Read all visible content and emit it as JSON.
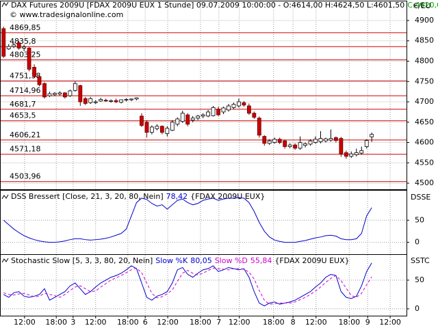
{
  "chart_data": [
    {
      "type": "candlestick",
      "title": "DAX Futures 2009U [FDAX 2009U EUX  1 Stunde] 09.07.2009 10:00:00 - O:4614,00 H:4624,50 L:4601,50",
      "close_label": "C:4620,00",
      "credit": "© www.tradesignalonline.com",
      "y_label": "€/EU",
      "up_color": "#ffffff",
      "down_color": "#cc0000",
      "level_color": "#cc0000",
      "ylim": [
        4485,
        4947
      ],
      "yticks": [
        4900,
        4850,
        4800,
        4750,
        4700,
        4650,
        4600,
        4550,
        4500
      ],
      "grid": true,
      "levels": [
        {
          "value": 4869.85,
          "label": "4869,85"
        },
        {
          "value": 4835.8,
          "label": "4835,8"
        },
        {
          "value": 4803.25,
          "label": "4803,25"
        },
        {
          "value": 4751.38,
          "label": "4751,38"
        },
        {
          "value": 4714.96,
          "label": "4714,96"
        },
        {
          "value": 4681.7,
          "label": "4681,7"
        },
        {
          "value": 4653.5,
          "label": "4653,5"
        },
        {
          "value": 4606.21,
          "label": "4606,21"
        },
        {
          "value": 4571.18,
          "label": "4571,18"
        },
        {
          "value": 4503.96,
          "label": "4503,96"
        }
      ],
      "open": [
        4880,
        4830,
        4836,
        4845,
        4832,
        4832,
        4785,
        4762,
        4745,
        4715,
        4718,
        4719,
        4722,
        4715,
        4728,
        4740,
        4708,
        4698,
        4698,
        4702,
        4704,
        4701,
        4703,
        4699,
        4704,
        4705,
        4707,
        4665,
        4650,
        4625,
        4634,
        4640,
        4622,
        4630,
        4645,
        4652,
        4668,
        4655,
        4660,
        4665,
        4665,
        4666,
        4682,
        4675,
        4680,
        4686,
        4690,
        4698,
        4690,
        4672,
        4660,
        4615,
        4598,
        4600,
        4608,
        4604,
        4590,
        4594,
        4586,
        4593,
        4596,
        4600,
        4602,
        4604,
        4606,
        4612,
        4610,
        4575,
        4566,
        4570,
        4574,
        4590,
        4614
      ],
      "high": [
        4885,
        4842,
        4845,
        4850,
        4840,
        4835,
        4792,
        4768,
        4748,
        4725,
        4724,
        4726,
        4724,
        4730,
        4750,
        4742,
        4712,
        4712,
        4704,
        4710,
        4708,
        4706,
        4708,
        4706,
        4709,
        4708,
        4711,
        4672,
        4655,
        4642,
        4645,
        4642,
        4640,
        4655,
        4662,
        4678,
        4672,
        4665,
        4668,
        4672,
        4680,
        4690,
        4688,
        4688,
        4695,
        4698,
        4708,
        4702,
        4696,
        4676,
        4664,
        4618,
        4608,
        4612,
        4612,
        4607,
        4598,
        4598,
        4615,
        4600,
        4608,
        4615,
        4628,
        4612,
        4632,
        4615,
        4614,
        4580,
        4578,
        4585,
        4590,
        4608,
        4624.5
      ],
      "low": [
        4808,
        4828,
        4832,
        4828,
        4825,
        4775,
        4758,
        4738,
        4708,
        4712,
        4714,
        4716,
        4708,
        4712,
        4725,
        4690,
        4692,
        4695,
        4695,
        4700,
        4700,
        4698,
        4697,
        4696,
        4701,
        4702,
        4704,
        4638,
        4612,
        4620,
        4630,
        4620,
        4615,
        4628,
        4640,
        4648,
        4640,
        4650,
        4655,
        4660,
        4662,
        4664,
        4665,
        4670,
        4676,
        4682,
        4686,
        4688,
        4668,
        4658,
        4612,
        4592,
        4594,
        4597,
        4596,
        4585,
        4586,
        4582,
        4582,
        4588,
        4592,
        4597,
        4598,
        4600,
        4602,
        4600,
        4565,
        4560,
        4562,
        4566,
        4570,
        4585,
        4601.5
      ],
      "close": [
        4812,
        4836,
        4840,
        4832,
        4835,
        4780,
        4762,
        4742,
        4712,
        4720,
        4721,
        4722,
        4712,
        4727,
        4745,
        4700,
        4696,
        4708,
        4700,
        4706,
        4702,
        4703,
        4700,
        4705,
        4706,
        4707,
        4710,
        4642,
        4625,
        4638,
        4640,
        4625,
        4635,
        4650,
        4658,
        4672,
        4645,
        4660,
        4665,
        4668,
        4675,
        4686,
        4668,
        4685,
        4690,
        4694,
        4700,
        4692,
        4672,
        4662,
        4618,
        4598,
        4604,
        4608,
        4600,
        4590,
        4594,
        4586,
        4600,
        4597,
        4604,
        4608,
        4610,
        4609,
        4610,
        4605,
        4572,
        4566,
        4572,
        4575,
        4580,
        4605,
        4620
      ]
    },
    {
      "type": "line",
      "subtitle": "{FDAX 2009U EUX}",
      "y_label": "DSSE",
      "ylim": [
        -27,
        117
      ],
      "yticks": [
        50,
        0
      ],
      "series": [
        {
          "name": "DSS Bressert [Close, 21, 3, 20, 80, Nein]",
          "color": "#0000cc",
          "values": [
            50,
            40,
            30,
            22,
            15,
            10,
            6,
            3,
            1,
            0,
            0,
            1,
            3,
            6,
            8,
            8,
            6,
            5,
            6,
            7,
            9,
            12,
            16,
            20,
            30,
            60,
            90,
            100,
            97,
            88,
            82,
            85,
            75,
            85,
            95,
            98,
            90,
            85,
            88,
            95,
            98,
            100,
            95,
            98,
            100,
            100,
            101,
            100,
            90,
            70,
            45,
            25,
            12,
            5,
            2,
            0,
            0,
            0,
            2,
            4,
            7,
            10,
            12,
            15,
            16,
            14,
            8,
            6,
            6,
            8,
            20,
            60,
            78.42
          ],
          "value_labels": [
            null,
            null,
            null,
            null,
            null,
            null,
            null,
            null,
            null,
            null,
            null,
            null,
            null,
            null,
            null,
            null,
            null,
            null,
            null,
            null,
            null,
            null,
            null,
            null,
            null,
            null,
            null,
            null,
            null,
            null,
            null,
            null,
            null,
            null,
            null,
            null,
            null,
            null,
            null,
            null,
            null,
            null,
            null,
            null,
            null,
            null,
            null,
            null,
            null,
            null,
            null,
            null,
            null,
            null,
            null,
            null,
            null,
            null,
            null,
            null,
            null,
            null,
            null,
            null,
            null,
            null,
            null,
            null,
            null,
            null,
            null,
            null,
            "78,42"
          ]
        }
      ]
    },
    {
      "type": "line",
      "title": "Stochastic Slow [5, 3, 3, 80, 20, Nein]",
      "subtitle": "{FDAX 2009U EUX}",
      "y_label": "SSTC",
      "ylim": [
        -12,
        94
      ],
      "yticks": [
        50,
        0
      ],
      "xlim": [
        -0.7,
        78.8
      ],
      "xticks": [
        {
          "value": 4.1,
          "label": "12:00"
        },
        {
          "value": 10.3,
          "label": "18:00"
        },
        {
          "value": 13.6,
          "label": "3"
        },
        {
          "value": 18.0,
          "label": "12:00"
        },
        {
          "value": 24.3,
          "label": "18:00"
        },
        {
          "value": 27.7,
          "label": "6"
        },
        {
          "value": 32.1,
          "label": "12:00"
        },
        {
          "value": 38.5,
          "label": "18:00"
        },
        {
          "value": 42.1,
          "label": "7"
        },
        {
          "value": 46.1,
          "label": "12:00"
        },
        {
          "value": 52.8,
          "label": "18:00"
        },
        {
          "value": 56.6,
          "label": "8"
        },
        {
          "value": 61.1,
          "label": "12:00"
        },
        {
          "value": 67.6,
          "label": "18:00"
        },
        {
          "value": 71.2,
          "label": "9"
        },
        {
          "value": 75.6,
          "label": "12:00"
        }
      ],
      "series": [
        {
          "name": "Slow %K",
          "color": "#0000cc",
          "style": "solid",
          "values": [
            25,
            20,
            28,
            30,
            22,
            20,
            22,
            25,
            35,
            15,
            20,
            25,
            30,
            40,
            45,
            35,
            25,
            30,
            38,
            45,
            50,
            55,
            58,
            62,
            68,
            75,
            70,
            45,
            20,
            15,
            22,
            25,
            30,
            45,
            68,
            72,
            60,
            55,
            62,
            68,
            70,
            75,
            65,
            68,
            72,
            70,
            68,
            70,
            55,
            30,
            10,
            5,
            10,
            12,
            8,
            10,
            12,
            15,
            20,
            25,
            30,
            38,
            45,
            55,
            60,
            58,
            30,
            20,
            18,
            22,
            40,
            65,
            80.05
          ],
          "value_labels": [
            null,
            null,
            null,
            null,
            null,
            null,
            null,
            null,
            null,
            null,
            null,
            null,
            null,
            null,
            null,
            null,
            null,
            null,
            null,
            null,
            null,
            null,
            null,
            null,
            null,
            null,
            null,
            null,
            null,
            null,
            null,
            null,
            null,
            null,
            null,
            null,
            null,
            null,
            null,
            null,
            null,
            null,
            null,
            null,
            null,
            null,
            null,
            null,
            null,
            null,
            null,
            null,
            null,
            null,
            null,
            null,
            null,
            null,
            null,
            null,
            null,
            null,
            null,
            null,
            null,
            null,
            null,
            null,
            null,
            null,
            null,
            null,
            "80,05"
          ]
        },
        {
          "name": "Slow %D",
          "color": "#cc00cc",
          "style": "dashed",
          "values": [
            28,
            25,
            24,
            26,
            27,
            24,
            21,
            22,
            27,
            25,
            23,
            20,
            25,
            32,
            38,
            40,
            35,
            30,
            31,
            38,
            44,
            50,
            54,
            58,
            63,
            68,
            71,
            63,
            45,
            27,
            19,
            21,
            26,
            33,
            48,
            62,
            67,
            62,
            59,
            62,
            67,
            71,
            70,
            69,
            68,
            70,
            70,
            69,
            64,
            52,
            32,
            15,
            8,
            9,
            10,
            10,
            10,
            12,
            16,
            20,
            25,
            31,
            38,
            46,
            53,
            58,
            49,
            36,
            23,
            20,
            27,
            42,
            55.84
          ],
          "value_labels": [
            null,
            null,
            null,
            null,
            null,
            null,
            null,
            null,
            null,
            null,
            null,
            null,
            null,
            null,
            null,
            null,
            null,
            null,
            null,
            null,
            null,
            null,
            null,
            null,
            null,
            null,
            null,
            null,
            null,
            null,
            null,
            null,
            null,
            null,
            null,
            null,
            null,
            null,
            null,
            null,
            null,
            null,
            null,
            null,
            null,
            null,
            null,
            null,
            null,
            null,
            null,
            null,
            null,
            null,
            null,
            null,
            null,
            null,
            null,
            null,
            null,
            null,
            null,
            null,
            null,
            null,
            null,
            null,
            null,
            null,
            null,
            null,
            "55,84"
          ]
        }
      ]
    }
  ]
}
